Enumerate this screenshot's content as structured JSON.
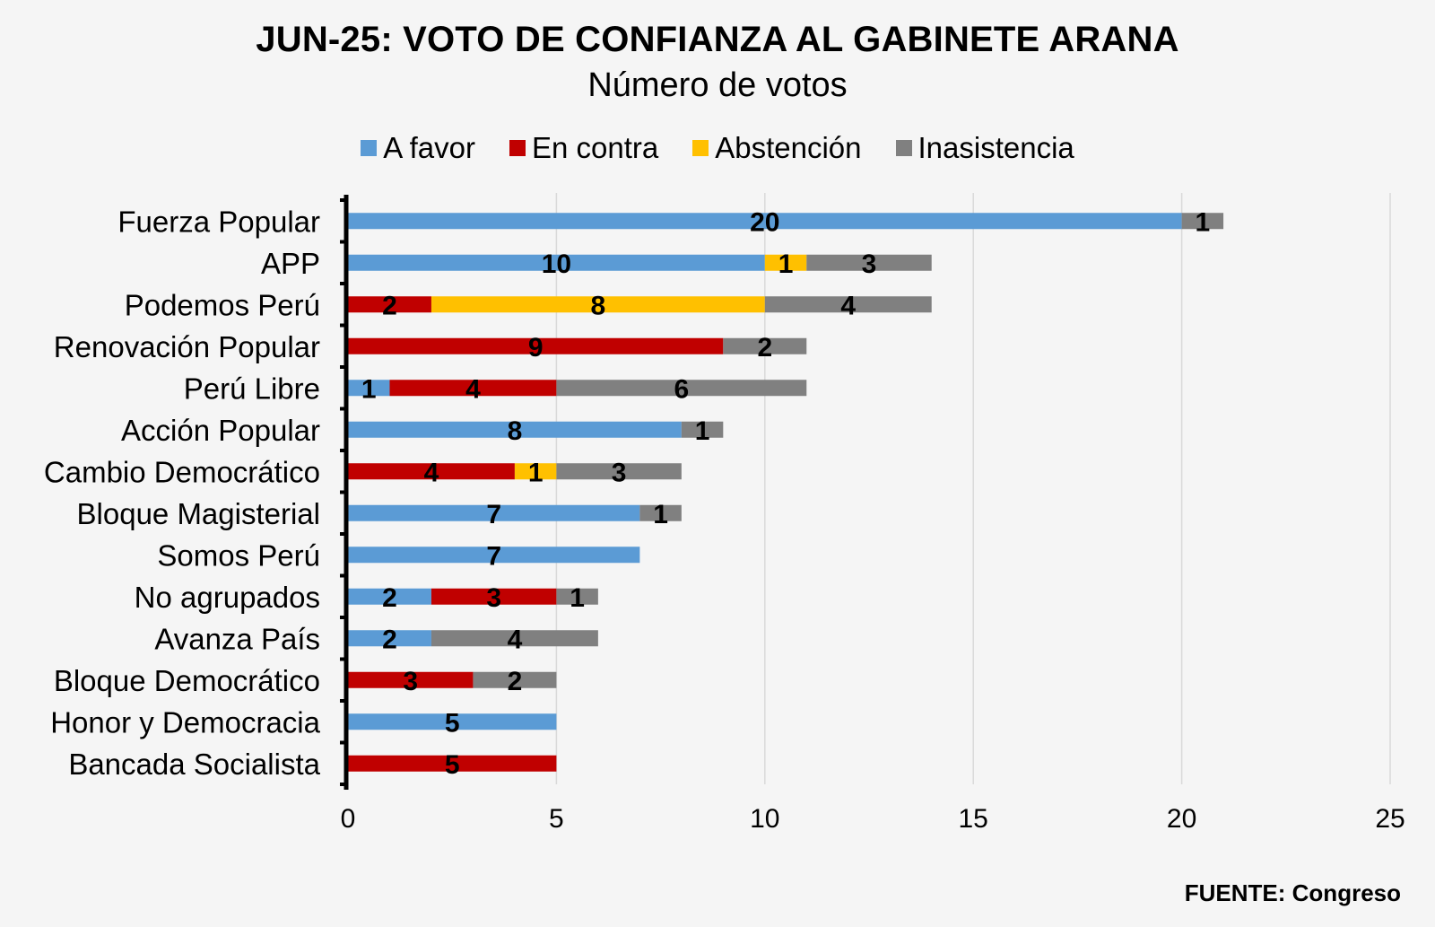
{
  "chart_data": {
    "type": "bar",
    "orientation": "horizontal",
    "stacked": true,
    "title": "JUN-25: VOTO DE CONFIANZA AL GABINETE ARANA",
    "subtitle": "Número de votos",
    "xlim": [
      0,
      25
    ],
    "xticks": [
      "0",
      "5",
      "10",
      "15",
      "20",
      "25"
    ],
    "grid": true,
    "legend_position": "top",
    "source": "FUENTE: Congreso",
    "categories": [
      "Fuerza Popular",
      "APP",
      "Podemos Perú",
      "Renovación Popular",
      "Perú Libre",
      "Acción Popular",
      "Cambio Democrático",
      "Bloque Magisterial",
      "Somos Perú",
      "No agrupados",
      "Avanza País",
      "Bloque Democrático",
      "Honor y Democracia",
      "Bancada Socialista"
    ],
    "series": [
      {
        "name": "A favor",
        "color": "#5b9bd5",
        "values": [
          20,
          10,
          0,
          0,
          1,
          8,
          0,
          7,
          7,
          2,
          2,
          0,
          5,
          0
        ]
      },
      {
        "name": "En contra",
        "color": "#c00000",
        "values": [
          0,
          0,
          2,
          9,
          4,
          0,
          4,
          0,
          0,
          3,
          0,
          3,
          0,
          5
        ]
      },
      {
        "name": "Abstención",
        "color": "#ffc000",
        "values": [
          0,
          1,
          8,
          0,
          0,
          0,
          1,
          0,
          0,
          0,
          0,
          0,
          0,
          0
        ]
      },
      {
        "name": "Inasistencia",
        "color": "#808080",
        "values": [
          1,
          3,
          4,
          2,
          6,
          1,
          3,
          1,
          0,
          1,
          4,
          2,
          0,
          0
        ]
      }
    ]
  }
}
